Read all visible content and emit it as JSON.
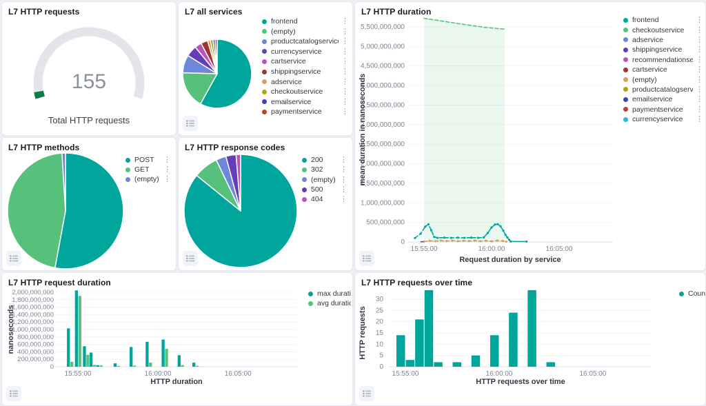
{
  "icons": {
    "legend_actions": "⋮",
    "legend_toggle": "list-icon"
  },
  "chart_data": [
    {
      "id": "http-requests-gauge",
      "type": "gauge",
      "title": "L7 HTTP requests",
      "value": 155,
      "label": "Total HTTP requests",
      "fill_fraction": 0.033,
      "track_color": "#e3e5ea",
      "fill_color": "#0d7c45"
    },
    {
      "id": "all-services-pie",
      "type": "pie",
      "title": "L7 all services",
      "items": [
        {
          "label": "frontend",
          "value": 90,
          "color": "#00a69b"
        },
        {
          "label": "(empty)",
          "value": 27,
          "color": "#57c17b"
        },
        {
          "label": "productcatalogservice",
          "value": 13,
          "color": "#6f87d8"
        },
        {
          "label": "currencyservice",
          "value": 8,
          "color": "#663db8"
        },
        {
          "label": "cartservice",
          "value": 5,
          "color": "#bc52bc"
        },
        {
          "label": "shippingservice",
          "value": 5,
          "color": "#9e3533"
        },
        {
          "label": "adservice",
          "value": 2,
          "color": "#daa05d"
        },
        {
          "label": "checkoutservice",
          "value": 2,
          "color": "#b0a31e"
        },
        {
          "label": "emailservice",
          "value": 1.5,
          "color": "#3b45c0"
        },
        {
          "label": "paymentservice",
          "value": 1.5,
          "color": "#c33d32"
        }
      ]
    },
    {
      "id": "http-duration-lines",
      "type": "area",
      "title": "L7 HTTP duration",
      "ylabel": "mean duration in nanoseconds",
      "xlabel": "Request duration by service",
      "y_axis": {
        "min": 0,
        "max": 5500000000,
        "step": 500000000
      },
      "x_ticks": [
        {
          "t": 0,
          "label": "15:55:00"
        },
        {
          "t": 300,
          "label": "16:00:00"
        },
        {
          "t": 600,
          "label": "16:05:00"
        }
      ],
      "legend": [
        {
          "label": "frontend",
          "color": "#00a69b"
        },
        {
          "label": "checkoutservice",
          "color": "#57c17b"
        },
        {
          "label": "adservice",
          "color": "#6f87d8"
        },
        {
          "label": "shippingservice",
          "color": "#663db8"
        },
        {
          "label": "recommendationservice",
          "color": "#bc52bc"
        },
        {
          "label": "cartservice",
          "color": "#9e3533"
        },
        {
          "label": "(empty)",
          "color": "#daa05d"
        },
        {
          "label": "productcatalogservice",
          "color": "#b0a31e"
        },
        {
          "label": "emailservice",
          "color": "#3b45c0"
        },
        {
          "label": "paymentservice",
          "color": "#c33d32"
        },
        {
          "label": "currencyservice",
          "color": "#30b7d9"
        }
      ],
      "series": [
        {
          "name": "checkoutservice",
          "color": "#57c17b",
          "area": true,
          "segments": [
            {
              "style": "dashed",
              "points": [
                [
                  0,
                  5720000000
                ],
                [
                  90,
                  5640000000
                ],
                [
                  180,
                  5560000000
                ],
                [
                  270,
                  5490000000
                ],
                [
                  358,
                  5440000000
                ]
              ]
            }
          ]
        },
        {
          "name": "frontend",
          "color": "#00a69b",
          "markers": true,
          "segments": [
            {
              "style": "dashed",
              "points": [
                [
                  -40,
                  100000000
                ],
                [
                  -15,
                  210000000
                ],
                [
                  5,
                  390000000
                ],
                [
                  20,
                  450000000
                ],
                [
                  32,
                  300000000
                ],
                [
                  45,
                  130000000
                ],
                [
                  60,
                  105000000
                ],
                [
                  90,
                  110000000
                ],
                [
                  120,
                  105000000
                ],
                [
                  150,
                  110000000
                ],
                [
                  180,
                  105000000
                ],
                [
                  210,
                  110000000
                ],
                [
                  240,
                  105000000
                ],
                [
                  265,
                  115000000
                ]
              ]
            },
            {
              "style": "solid",
              "points": [
                [
                  265,
                  115000000
                ],
                [
                  283,
                  230000000
                ],
                [
                  300,
                  370000000
                ],
                [
                  315,
                  445000000
                ],
                [
                  327,
                  455000000
                ],
                [
                  340,
                  400000000
                ],
                [
                  352,
                  290000000
                ],
                [
                  362,
                  180000000
                ],
                [
                  370,
                  115000000
                ],
                [
                  378,
                  55000000
                ],
                [
                  385,
                  12000000
                ],
                [
                  455,
                  10000000
                ]
              ]
            }
          ]
        },
        {
          "name": "(empty)",
          "color": "#daa05d",
          "markers": true,
          "segments": [
            {
              "style": "dashed",
              "points": [
                [
                  0,
                  8000000
                ],
                [
                  25,
                  30000000
                ],
                [
                  50,
                  20000000
                ],
                [
                  75,
                  35000000
                ],
                [
                  100,
                  22000000
                ],
                [
                  125,
                  35000000
                ],
                [
                  150,
                  20000000
                ],
                [
                  175,
                  32000000
                ],
                [
                  200,
                  22000000
                ],
                [
                  225,
                  35000000
                ],
                [
                  250,
                  20000000
                ],
                [
                  275,
                  32000000
                ],
                [
                  300,
                  15000000
                ],
                [
                  325,
                  35000000
                ],
                [
                  350,
                  25000000
                ],
                [
                  365,
                  10000000
                ]
              ]
            }
          ]
        },
        {
          "name": "shippingservice",
          "color": "#663db8",
          "segments": [
            {
              "style": "solid",
              "points": [
                [
                  -14,
                  6000000
                ],
                [
                  -4,
                  6000000
                ]
              ]
            }
          ]
        }
      ]
    },
    {
      "id": "methods-pie",
      "type": "pie",
      "title": "L7 HTTP methods",
      "items": [
        {
          "label": "POST",
          "value": 82,
          "color": "#00a69b"
        },
        {
          "label": "GET",
          "value": 71.5,
          "color": "#57c17b"
        },
        {
          "label": "(empty)",
          "value": 1.5,
          "color": "#6f87d8"
        }
      ]
    },
    {
      "id": "codes-pie",
      "type": "pie",
      "title": "L7 HTTP response codes",
      "items": [
        {
          "label": "200",
          "value": 133,
          "color": "#00a69b"
        },
        {
          "label": "302",
          "value": 11,
          "color": "#57c17b"
        },
        {
          "label": "(empty)",
          "value": 4.5,
          "color": "#6f87d8"
        },
        {
          "label": "500",
          "value": 4.5,
          "color": "#663db8"
        },
        {
          "label": "404",
          "value": 2,
          "color": "#bc52bc"
        }
      ]
    },
    {
      "id": "request-duration-bars",
      "type": "bar",
      "title": "L7 HTTP request duration",
      "ylabel": "nanoseconds",
      "xlabel": "HTTP duration",
      "y_axis": {
        "min": 0,
        "max": 2000000000,
        "step": 200000000
      },
      "x_ticks": [
        {
          "t": 0,
          "label": "15:55:00"
        },
        {
          "t": 300,
          "label": "16:00:00"
        },
        {
          "t": 600,
          "label": "16:05:00"
        }
      ],
      "t": [
        -30,
        0,
        30,
        55,
        80,
        145,
        205,
        265,
        325,
        385,
        440
      ],
      "series": [
        {
          "name": "max duration",
          "color": "#00a69b",
          "values": [
            1030000000,
            2050000000,
            550000000,
            380000000,
            40000000,
            90000000,
            530000000,
            670000000,
            730000000,
            310000000,
            110000000
          ]
        },
        {
          "name": "avg duration",
          "color": "#57c17b",
          "values": [
            130000000,
            1900000000,
            320000000,
            50000000,
            35000000,
            20000000,
            30000000,
            110000000,
            480000000,
            45000000,
            25000000
          ]
        }
      ]
    },
    {
      "id": "requests-over-time-bars",
      "type": "bar",
      "title": "L7 HTTP requests over time",
      "ylabel": "HTTP requests",
      "xlabel": "HTTP requests over time",
      "y_axis": {
        "min": 0,
        "max": 30,
        "step": 5
      },
      "x_ticks": [
        {
          "t": 0,
          "label": "15:55:00"
        },
        {
          "t": 300,
          "label": "16:00:00"
        },
        {
          "t": 600,
          "label": "16:05:00"
        }
      ],
      "t": [
        -15,
        15,
        45,
        75,
        105,
        165,
        225,
        285,
        345,
        405,
        465
      ],
      "series": [
        {
          "name": "Count",
          "color": "#00a69b",
          "values": [
            14,
            3,
            21,
            34,
            2,
            2,
            5,
            14,
            24,
            34,
            2
          ]
        }
      ]
    }
  ]
}
